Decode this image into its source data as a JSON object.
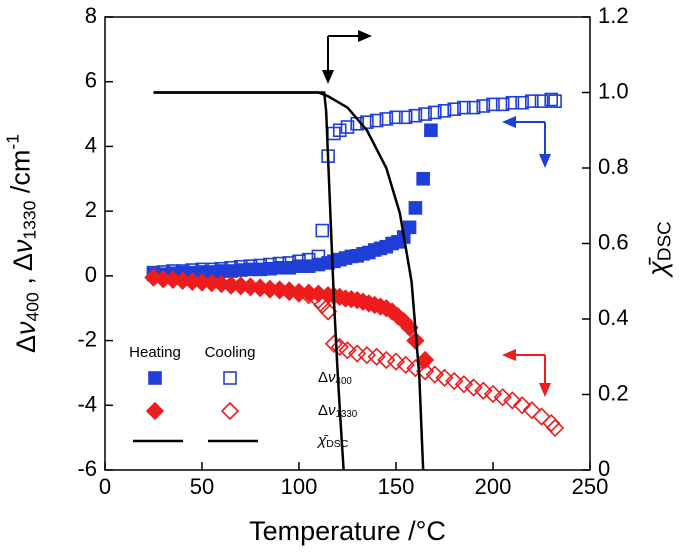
{
  "chart_data": {
    "type": "scatter",
    "xlabel": "Temperature /°C",
    "ylabel": "Δν400 , Δν1330 /cm-1",
    "y2label": "χ̄DSC",
    "xlim": [
      0,
      250
    ],
    "xticks": [
      0,
      50,
      100,
      150,
      200,
      250
    ],
    "ylim": [
      -6,
      8
    ],
    "yticks": [
      -6,
      -4,
      -2,
      0,
      2,
      4,
      6,
      8
    ],
    "y2lim": [
      0,
      1.2
    ],
    "y2ticks": [
      0,
      0.2,
      0.4,
      0.6,
      0.8,
      {
        "value": 1,
        "label": "1.0"
      },
      1.2
    ],
    "series": [
      {
        "name": "Δν400",
        "group": "Heating",
        "color": "#1f3fd6",
        "marker": "square",
        "filled": true,
        "x": [
          25,
          30,
          35,
          40,
          45,
          50,
          55,
          60,
          65,
          70,
          75,
          80,
          85,
          90,
          95,
          100,
          105,
          110,
          115,
          118,
          121,
          124,
          127,
          130,
          133,
          136,
          139,
          142,
          145,
          148,
          151,
          154,
          157,
          160,
          164,
          168
        ],
        "values": [
          0.05,
          0.05,
          0.08,
          0.1,
          0.1,
          0.12,
          0.12,
          0.15,
          0.15,
          0.18,
          0.2,
          0.2,
          0.22,
          0.25,
          0.25,
          0.3,
          0.3,
          0.35,
          0.4,
          0.45,
          0.5,
          0.55,
          0.6,
          0.62,
          0.68,
          0.72,
          0.8,
          0.85,
          0.9,
          1.0,
          1.05,
          1.2,
          1.5,
          2.1,
          3.0,
          4.5
        ]
      },
      {
        "name": "Δν400",
        "group": "Cooling",
        "color": "#1f3fd6",
        "marker": "square",
        "filled": false,
        "x": [
          25,
          30,
          35,
          40,
          45,
          50,
          55,
          60,
          65,
          70,
          75,
          80,
          85,
          90,
          95,
          100,
          105,
          110,
          112,
          115,
          118,
          121,
          125,
          130,
          135,
          140,
          145,
          150,
          155,
          160,
          165,
          170,
          175,
          180,
          185,
          190,
          195,
          200,
          205,
          210,
          215,
          220,
          225,
          230,
          232
        ],
        "values": [
          0.1,
          0.12,
          0.15,
          0.15,
          0.18,
          0.2,
          0.2,
          0.22,
          0.25,
          0.28,
          0.3,
          0.32,
          0.35,
          0.38,
          0.4,
          0.45,
          0.5,
          0.6,
          1.4,
          3.7,
          4.4,
          4.5,
          4.6,
          4.7,
          4.75,
          4.8,
          4.85,
          4.9,
          4.9,
          4.95,
          5.0,
          5.05,
          5.1,
          5.15,
          5.2,
          5.2,
          5.25,
          5.3,
          5.3,
          5.35,
          5.35,
          5.4,
          5.4,
          5.45,
          5.4
        ]
      },
      {
        "name": "Δν1330",
        "group": "Heating",
        "color": "#ee1c1c",
        "marker": "diamond",
        "filled": true,
        "x": [
          25,
          30,
          35,
          40,
          45,
          50,
          55,
          60,
          65,
          70,
          75,
          80,
          85,
          90,
          95,
          100,
          105,
          110,
          115,
          118,
          121,
          124,
          127,
          130,
          133,
          136,
          139,
          142,
          145,
          148,
          151,
          154,
          157,
          160,
          165
        ],
        "values": [
          -0.05,
          -0.1,
          -0.12,
          -0.15,
          -0.18,
          -0.2,
          -0.22,
          -0.25,
          -0.28,
          -0.3,
          -0.33,
          -0.36,
          -0.4,
          -0.42,
          -0.45,
          -0.5,
          -0.52,
          -0.55,
          -0.6,
          -0.62,
          -0.65,
          -0.7,
          -0.72,
          -0.75,
          -0.8,
          -0.85,
          -0.9,
          -0.95,
          -1.0,
          -1.1,
          -1.25,
          -1.4,
          -1.6,
          -2.0,
          -2.6
        ]
      },
      {
        "name": "Δν1330",
        "group": "Cooling",
        "color": "#ee1c1c",
        "marker": "diamond",
        "filled": false,
        "x": [
          25,
          30,
          35,
          40,
          45,
          50,
          55,
          60,
          65,
          70,
          75,
          80,
          85,
          90,
          95,
          100,
          105,
          110,
          112,
          115,
          118,
          121,
          125,
          130,
          135,
          140,
          145,
          150,
          155,
          160,
          165,
          170,
          175,
          180,
          185,
          190,
          195,
          200,
          205,
          210,
          215,
          220,
          225,
          230,
          232
        ],
        "values": [
          -0.05,
          -0.1,
          -0.12,
          -0.15,
          -0.18,
          -0.2,
          -0.22,
          -0.25,
          -0.3,
          -0.32,
          -0.35,
          -0.38,
          -0.42,
          -0.45,
          -0.5,
          -0.55,
          -0.6,
          -0.75,
          -0.9,
          -1.1,
          -2.1,
          -2.2,
          -2.3,
          -2.4,
          -2.45,
          -2.5,
          -2.6,
          -2.65,
          -2.75,
          -2.85,
          -2.95,
          -3.05,
          -3.15,
          -3.25,
          -3.35,
          -3.45,
          -3.55,
          -3.65,
          -3.75,
          -3.85,
          -4.0,
          -4.15,
          -4.35,
          -4.55,
          -4.7
        ]
      },
      {
        "name": "χ̄DSC",
        "group": "Heating",
        "color": "#000000",
        "marker": "line",
        "axis": "y2",
        "x": [
          25,
          110,
          115,
          125,
          135,
          145,
          152,
          158,
          162,
          164
        ],
        "values": [
          1,
          1,
          0.99,
          0.96,
          0.9,
          0.8,
          0.68,
          0.5,
          0.25,
          0
        ]
      },
      {
        "name": "χ̄DSC",
        "group": "Cooling",
        "color": "#000000",
        "marker": "line",
        "axis": "y2",
        "x": [
          25,
          113,
          114,
          116,
          118,
          120,
          122,
          123
        ],
        "values": [
          1,
          1,
          0.95,
          0.7,
          0.45,
          0.25,
          0.08,
          0
        ]
      }
    ]
  }
}
